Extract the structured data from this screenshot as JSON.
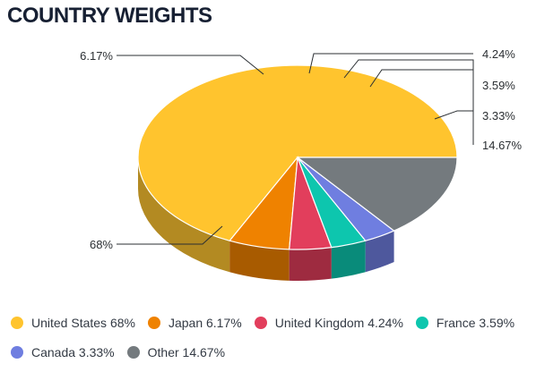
{
  "chart_data": {
    "type": "pie",
    "title": "COUNTRY WEIGHTS",
    "slices": [
      {
        "name": "United States",
        "value": 68,
        "label": "68%",
        "legend": "United States 68%",
        "color": "#ffc42e",
        "side": "#b38a22"
      },
      {
        "name": "Japan",
        "value": 6.17,
        "label": "6.17%",
        "legend": "Japan 6.17%",
        "color": "#ef8200",
        "side": "#a85b00"
      },
      {
        "name": "United Kingdom",
        "value": 4.24,
        "label": "4.24%",
        "legend": "United Kingdom 4.24%",
        "color": "#e23e5c",
        "side": "#9e2b40"
      },
      {
        "name": "France",
        "value": 3.59,
        "label": "3.59%",
        "legend": "France 3.59%",
        "color": "#0dc6ae",
        "side": "#098b7a"
      },
      {
        "name": "Canada",
        "value": 3.33,
        "label": "3.33%",
        "legend": "Canada 3.33%",
        "color": "#6f7ee0",
        "side": "#4e589d"
      },
      {
        "name": "Other",
        "value": 14.67,
        "label": "14.67%",
        "legend": "Other 14.67%",
        "color": "#747a7e",
        "side": "#525658"
      }
    ],
    "legend_position": "bottom"
  }
}
